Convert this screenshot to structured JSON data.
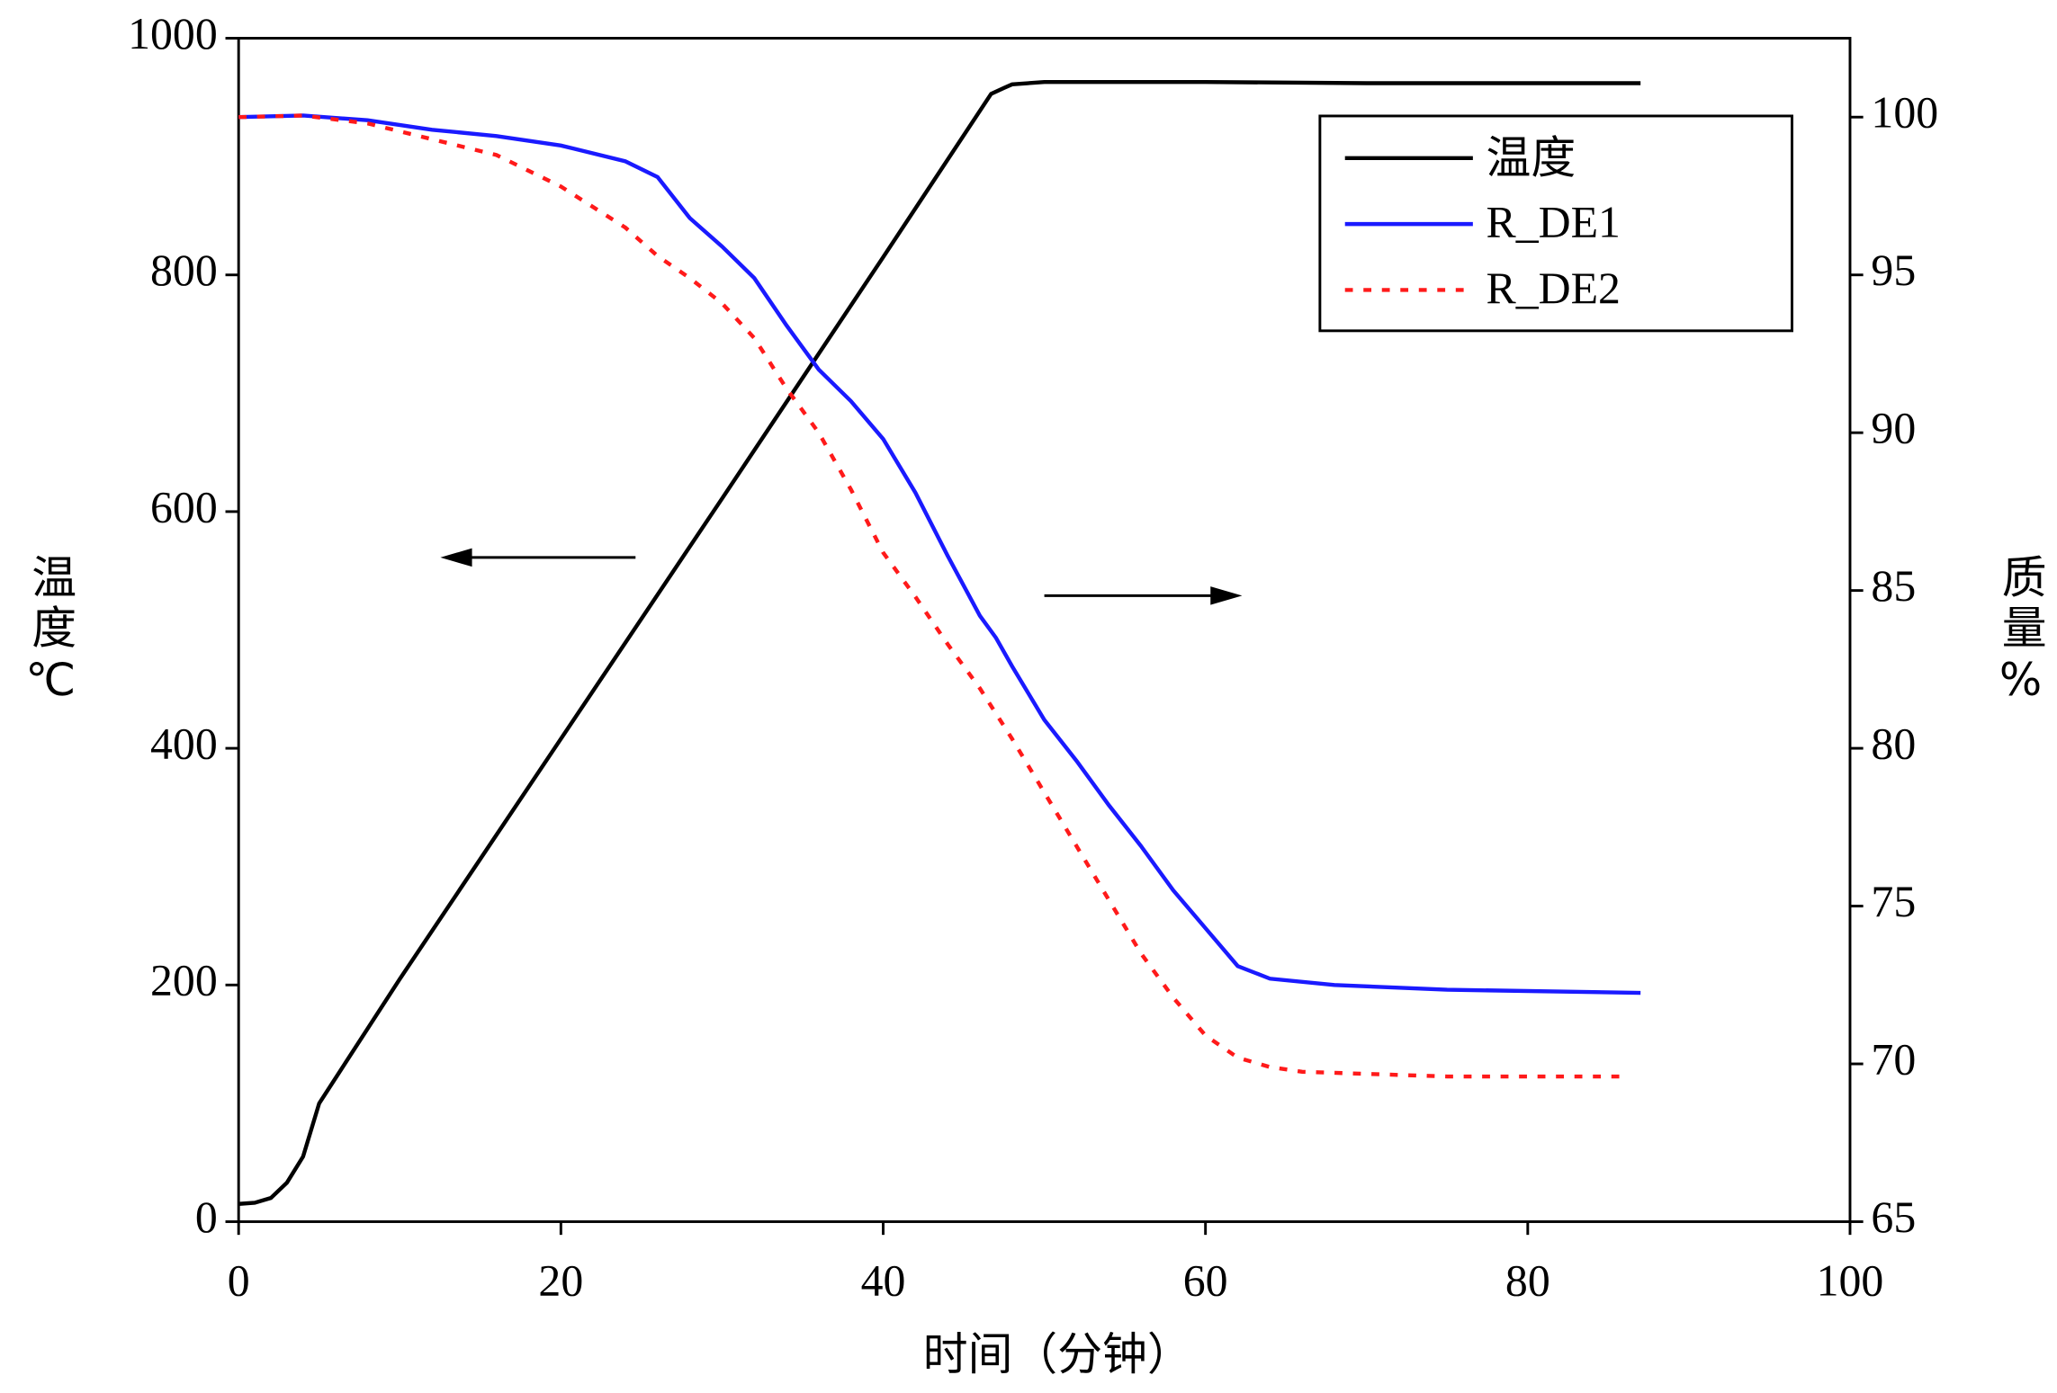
{
  "chart_data": {
    "type": "line",
    "x_label": "时间（分钟）",
    "y_label": "温度℃",
    "y2_label": "质量%",
    "xlim": [
      0,
      100
    ],
    "xticks": [
      0,
      20,
      40,
      60,
      80,
      100
    ],
    "ylim": [
      0,
      1000
    ],
    "yticks": [
      0,
      200,
      400,
      600,
      800,
      1000
    ],
    "y2lim": [
      65,
      102.5
    ],
    "y2ticks": [
      65,
      70,
      75,
      80,
      85,
      90,
      95,
      100
    ],
    "legend": "upper right",
    "series": [
      {
        "name": "温度",
        "color": "#000000",
        "dash": false,
        "x": [
          0,
          1,
          2,
          3,
          4,
          5,
          10,
          20,
          30,
          40,
          46.7,
          47.5,
          48,
          50,
          60,
          70,
          80,
          87
        ],
        "values": [
          15,
          16,
          20,
          33,
          55,
          100,
          205,
          408,
          611,
          815,
          953,
          958,
          961,
          963,
          963,
          962,
          962,
          962
        ]
      },
      {
        "name": "R_DE1",
        "color": "#1a1aff",
        "dash": false,
        "axis": "y2",
        "x": [
          0,
          4,
          8,
          12,
          16,
          20,
          24,
          26,
          28,
          30,
          32,
          34,
          36,
          38,
          40,
          42,
          44,
          46,
          47,
          48,
          50,
          52,
          54,
          56,
          58,
          60,
          62,
          64,
          68,
          75,
          87
        ],
        "values": [
          100,
          100.05,
          99.9,
          99.6,
          99.4,
          99.1,
          98.6,
          98.1,
          96.8,
          95.9,
          94.9,
          93.4,
          92.0,
          91.0,
          89.8,
          88.1,
          86.1,
          84.2,
          83.5,
          82.6,
          80.9,
          79.6,
          78.2,
          76.9,
          75.5,
          74.3,
          73.1,
          72.7,
          72.5,
          72.35,
          72.25
        ]
      },
      {
        "name": "R_DE2",
        "color": "#ff1a1a",
        "dash": true,
        "axis": "y2",
        "x": [
          0,
          4,
          8,
          12,
          16,
          20,
          24,
          26,
          28,
          30,
          32,
          34,
          36,
          38,
          40,
          42,
          44,
          46,
          48,
          50,
          52,
          54,
          56,
          58,
          60,
          62,
          64,
          66,
          75,
          86
        ],
        "values": [
          100,
          100.05,
          99.8,
          99.3,
          98.8,
          97.8,
          96.5,
          95.6,
          94.9,
          94.1,
          93.0,
          91.4,
          90.0,
          88.2,
          86.2,
          84.8,
          83.3,
          81.9,
          80.3,
          78.6,
          76.9,
          75.2,
          73.5,
          72.1,
          70.9,
          70.2,
          69.9,
          69.75,
          69.6,
          69.6
        ]
      }
    ]
  }
}
